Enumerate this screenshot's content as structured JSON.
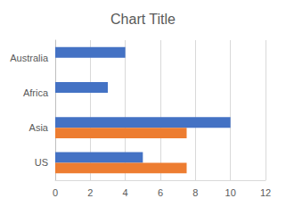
{
  "chart_data": {
    "type": "bar",
    "title": "Chart Title",
    "orientation": "horizontal",
    "categories": [
      "US",
      "Asia",
      "Africa",
      "Australia"
    ],
    "series": [
      {
        "color": "#4472c4",
        "values": [
          5,
          10,
          3,
          4
        ]
      },
      {
        "color": "#ed7d31",
        "values": [
          7.5,
          7.5,
          null,
          null
        ]
      }
    ],
    "xlim": [
      0,
      12
    ],
    "xticks": [
      0,
      2,
      4,
      6,
      8,
      10,
      12
    ],
    "grid": true
  }
}
